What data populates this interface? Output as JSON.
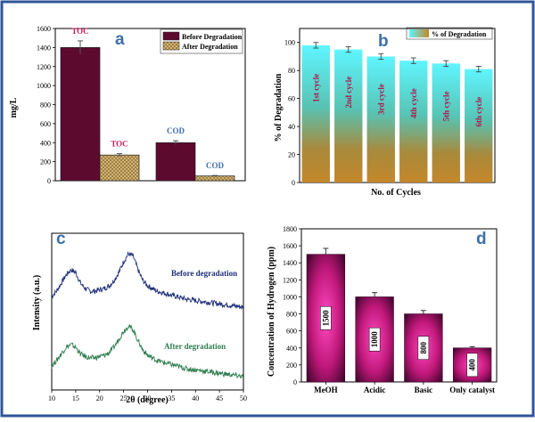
{
  "figure": {
    "frame_color": "#2f5597"
  },
  "chart_data": [
    {
      "panel": "a",
      "type": "bar",
      "ylabel": "mg/L",
      "ylim": [
        0,
        1600
      ],
      "yticks": [
        0,
        200,
        400,
        600,
        800,
        1000,
        1200,
        1400,
        1600
      ],
      "series": [
        {
          "name": "Before Degradation",
          "color": "#5c0a2e",
          "values": [
            1400,
            400
          ],
          "errors": [
            70,
            20
          ],
          "labels": [
            "TOC",
            "COD"
          ]
        },
        {
          "name": "After Degradation",
          "color": "#c9a96b",
          "values": [
            270,
            50
          ],
          "errors": [
            15,
            5
          ],
          "labels": [
            "TOC",
            "COD"
          ]
        }
      ],
      "label_colors": {
        "TOC": "#d81b60",
        "COD": "#3d6fa8"
      }
    },
    {
      "panel": "b",
      "type": "bar",
      "xlabel": "No. of Cycles",
      "ylabel": "% of Degradation",
      "ylim": [
        0,
        110
      ],
      "yticks": [
        0,
        20,
        40,
        60,
        80,
        100
      ],
      "legend": "% of Degradation",
      "categories": [
        "1st cycle",
        "2nd cycle",
        "3rd cycle",
        "4th cycle",
        "5th cycle",
        "6th cycle"
      ],
      "values": [
        98,
        95,
        90,
        87,
        85,
        81
      ],
      "errors": [
        2,
        2,
        2,
        2,
        2,
        2
      ],
      "bar_label_color": "#b0154a"
    },
    {
      "panel": "c",
      "type": "line",
      "xlabel": "2θ (degree)",
      "ylabel": "Intensity (a.u.)",
      "xlim": [
        10,
        50
      ],
      "xticks": [
        10,
        15,
        20,
        25,
        30,
        35,
        40,
        45,
        50
      ],
      "series": [
        {
          "name": "Before degradation",
          "color": "#1f2f7a",
          "x": [
            10,
            11,
            12,
            13,
            14,
            15,
            16,
            17,
            18,
            19,
            20,
            21,
            22,
            23,
            24,
            25,
            26,
            27,
            28,
            29,
            30,
            32,
            34,
            36,
            38,
            40,
            42,
            44,
            46,
            48,
            50
          ],
          "y": [
            0.58,
            0.62,
            0.68,
            0.74,
            0.78,
            0.76,
            0.68,
            0.64,
            0.62,
            0.62,
            0.63,
            0.64,
            0.66,
            0.7,
            0.76,
            0.84,
            0.9,
            0.88,
            0.78,
            0.7,
            0.66,
            0.62,
            0.6,
            0.58,
            0.56,
            0.55,
            0.54,
            0.53,
            0.52,
            0.51,
            0.5
          ]
        },
        {
          "name": "After degradation",
          "color": "#2e7d4f",
          "x": [
            10,
            11,
            12,
            13,
            14,
            15,
            16,
            17,
            18,
            19,
            20,
            21,
            22,
            23,
            24,
            25,
            26,
            27,
            28,
            29,
            30,
            32,
            34,
            36,
            38,
            40,
            42,
            44,
            46,
            48,
            50
          ],
          "y": [
            0.06,
            0.1,
            0.15,
            0.2,
            0.22,
            0.2,
            0.15,
            0.13,
            0.12,
            0.12,
            0.13,
            0.14,
            0.16,
            0.2,
            0.26,
            0.32,
            0.36,
            0.33,
            0.25,
            0.18,
            0.14,
            0.1,
            0.08,
            0.06,
            0.04,
            0.03,
            0.02,
            0.01,
            0.0,
            -0.01,
            -0.02
          ]
        }
      ]
    },
    {
      "panel": "d",
      "type": "bar",
      "ylabel": "Concentration of Hydrogen (ppm)",
      "ylim": [
        0,
        1800
      ],
      "yticks": [
        0,
        200,
        400,
        600,
        800,
        1000,
        1200,
        1400,
        1600,
        1800
      ],
      "categories": [
        "MeOH",
        "Acidic",
        "Basic",
        "Only catalyst"
      ],
      "values": [
        1500,
        1000,
        800,
        400
      ],
      "errors": [
        70,
        50,
        40,
        15
      ],
      "bar_labels": [
        "1500",
        "1000",
        "800",
        "400"
      ],
      "colors": {
        "edge": "#4a0533",
        "center": "#ff3fb4"
      }
    }
  ]
}
